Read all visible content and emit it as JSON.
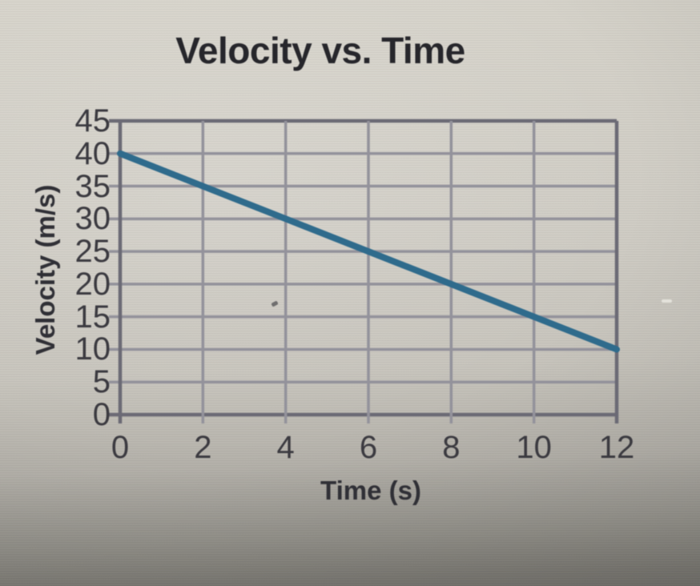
{
  "chart_data": {
    "type": "line",
    "title": "Velocity vs. Time",
    "xlabel": "Time (s)",
    "ylabel": "Velocity (m/s)",
    "xlim": [
      0,
      12
    ],
    "ylim": [
      0,
      45
    ],
    "x_ticks": [
      0,
      2,
      4,
      6,
      8,
      10,
      12
    ],
    "y_ticks": [
      0,
      5,
      10,
      15,
      20,
      25,
      30,
      35,
      40,
      45
    ],
    "grid": true,
    "legend_position": "none",
    "series": [
      {
        "color": "#2f6b8c",
        "points": [
          [
            0,
            40
          ],
          [
            2,
            35
          ],
          [
            4,
            30
          ],
          [
            6,
            25
          ],
          [
            8,
            20
          ],
          [
            10,
            15
          ],
          [
            12,
            10
          ]
        ]
      }
    ]
  },
  "colors": {
    "grid_inner": "#93929b",
    "grid_frame": "#6b6a75",
    "title_text": "#26262b",
    "tick_text": "#3b3a40",
    "line": "#2f6b8c"
  }
}
